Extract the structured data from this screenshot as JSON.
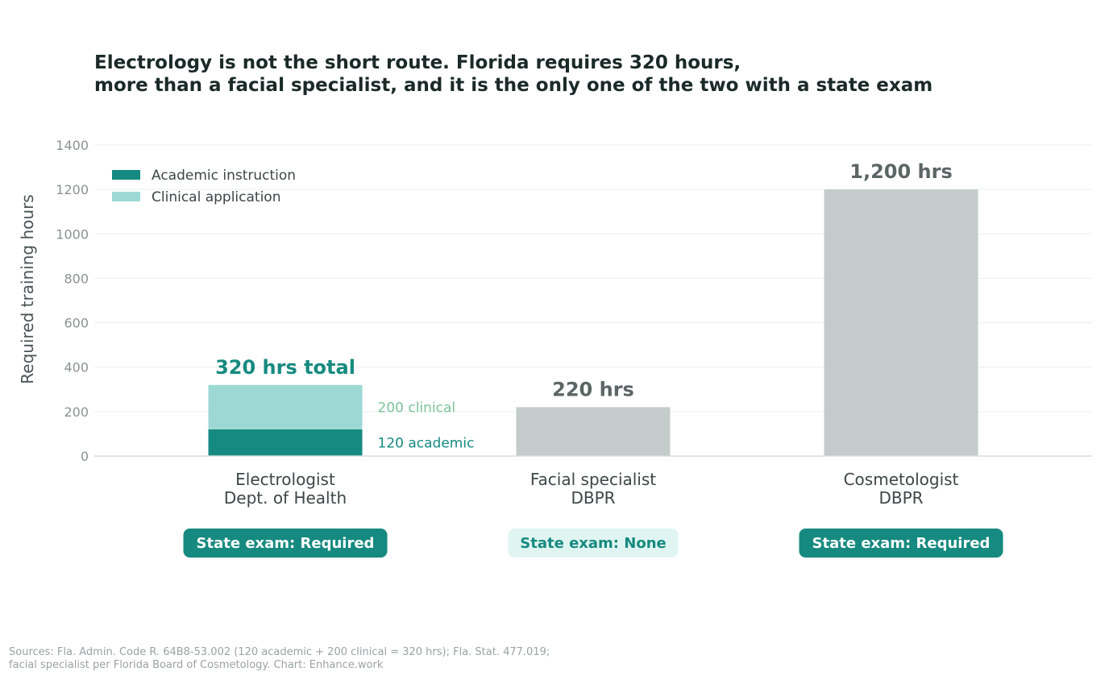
{
  "chart_data": {
    "type": "bar",
    "title": [
      "Electrology is not the short route. Florida requires 320 hours,",
      "more than a facial specialist, and it is the only one of the two with a state exam"
    ],
    "ylabel": "Required training hours",
    "ylim": [
      0,
      1400
    ],
    "yticks": [
      0,
      200,
      400,
      600,
      800,
      1000,
      1200,
      1400
    ],
    "grid": true,
    "legend": {
      "position": "top-left",
      "entries": [
        {
          "label": "Academic instruction",
          "color": "#168a80"
        },
        {
          "label": "Clinical application",
          "color": "#9dd9d4"
        }
      ]
    },
    "categories": [
      {
        "line1": "Electrologist",
        "line2": "Dept. of Health"
      },
      {
        "line1": "Facial specialist",
        "line2": "DBPR"
      },
      {
        "line1": "Cosmetologist",
        "line2": "DBPR"
      }
    ],
    "series": [
      {
        "name": "Academic instruction",
        "color": "#168a80",
        "values": [
          120,
          null,
          null
        ]
      },
      {
        "name": "Clinical application",
        "color": "#9dd9d4",
        "values": [
          200,
          null,
          null
        ]
      },
      {
        "color": "#c3ccca",
        "values": [
          null,
          220,
          1200
        ]
      }
    ],
    "bar_labels": [
      {
        "text": "320 hrs total",
        "value": 320,
        "color": "#168a80"
      },
      {
        "text": "220 hrs",
        "value": 220,
        "color": "#5b6664"
      },
      {
        "text": "1,200 hrs",
        "value": 1200,
        "color": "#5b6664"
      }
    ],
    "segment_annotations": [
      {
        "text": "200 clinical",
        "value": 220,
        "color": "#7cc39a"
      },
      {
        "text": "120 academic",
        "value": 60,
        "color": "#168a80"
      }
    ],
    "badges": [
      {
        "text": "State exam: Required",
        "style": "filled"
      },
      {
        "text": "State exam: None",
        "style": "light"
      },
      {
        "text": "State exam: Required",
        "style": "filled"
      }
    ],
    "colors": {
      "grid": "#e7f0ef",
      "axis": "#d6dedd",
      "tick_text": "#8a9391",
      "badge_filled_bg": "#168a80",
      "badge_filled_text": "#ffffff",
      "badge_light_bg": "#e0f5f2",
      "badge_light_text": "#168a80"
    }
  },
  "sources": [
    "Sources: Fla. Admin. Code R. 64B8-53.002 (120 academic + 200 clinical = 320 hrs); Fla. Stat. 477.019;",
    "facial specialist per Florida Board of Cosmetology.  Chart: Enhance.work"
  ]
}
